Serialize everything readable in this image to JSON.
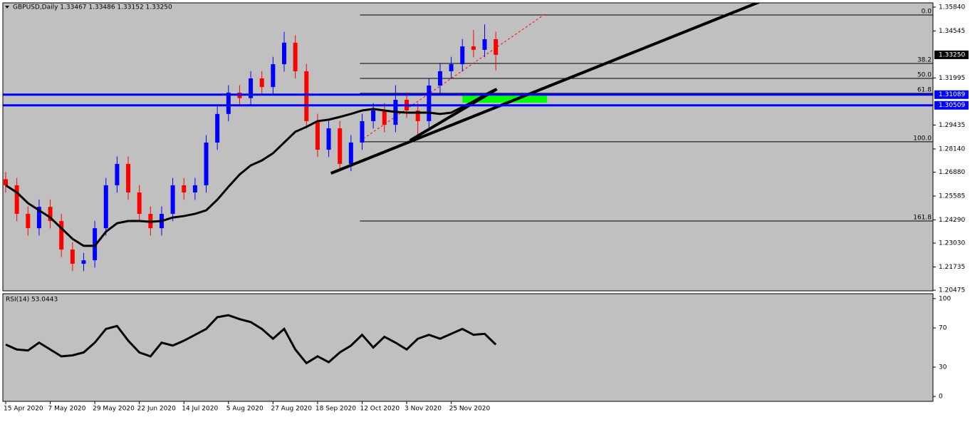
{
  "chart_data": [
    {
      "type": "candlestick",
      "title": "GBPUSD,Daily  1.33467 1.33486 1.33152 1.33250",
      "categories": [
        "15 Apr 2020",
        null,
        null,
        null,
        "7 May 2020",
        null,
        null,
        null,
        "29 May 2020",
        null,
        null,
        null,
        "22 Jun 2020",
        null,
        null,
        null,
        "14 Jul 2020",
        null,
        null,
        null,
        "5 Aug 2020",
        null,
        null,
        null,
        "27 Aug 2020",
        null,
        null,
        null,
        "18 Sep 2020",
        null,
        null,
        null,
        "12 Oct 2020",
        null,
        null,
        null,
        "3 Nov 2020",
        null,
        null,
        null,
        "25 Nov 2020",
        null,
        null,
        null,
        null
      ],
      "open": [
        1.265,
        1.2617,
        1.2462,
        1.2384,
        1.25,
        1.2423,
        1.2268,
        1.2191,
        1.221,
        1.2384,
        1.2617,
        1.2733,
        1.2578,
        1.2462,
        1.2384,
        1.2462,
        1.2617,
        1.2578,
        1.2617,
        1.2849,
        1.3004,
        1.312,
        1.309,
        1.3197,
        1.315,
        1.3274,
        1.3391,
        1.3236,
        1.2965,
        1.281,
        1.2926,
        1.2733,
        1.2849,
        1.2965,
        1.3023,
        1.2945,
        1.3081,
        1.3023,
        1.2965,
        1.3158,
        1.3236,
        1.3274,
        1.3371,
        1.3352,
        1.341
      ],
      "high": [
        1.269,
        1.2657,
        1.2502,
        1.254,
        1.254,
        1.2463,
        1.2308,
        1.225,
        1.2424,
        1.2657,
        1.2773,
        1.2773,
        1.2618,
        1.2502,
        1.2502,
        1.2657,
        1.2657,
        1.2657,
        1.2889,
        1.3044,
        1.316,
        1.316,
        1.3237,
        1.3237,
        1.3314,
        1.345,
        1.3431,
        1.3276,
        1.3005,
        1.2966,
        1.2966,
        1.2889,
        1.3005,
        1.3063,
        1.3063,
        1.316,
        1.3121,
        1.3063,
        1.3198,
        1.3276,
        1.3314,
        1.3411,
        1.346,
        1.349,
        1.345
      ],
      "low": [
        1.2577,
        1.2422,
        1.2344,
        1.2344,
        1.2383,
        1.2228,
        1.2151,
        1.2151,
        1.217,
        1.2344,
        1.2577,
        1.2538,
        1.2422,
        1.2344,
        1.2344,
        1.2422,
        1.2538,
        1.2538,
        1.2577,
        1.2809,
        1.2964,
        1.305,
        1.305,
        1.311,
        1.311,
        1.3234,
        1.3196,
        1.2925,
        1.277,
        1.277,
        1.2693,
        1.2693,
        1.2809,
        1.2925,
        1.2905,
        1.2905,
        1.2983,
        1.288,
        1.2925,
        1.3118,
        1.3196,
        1.3234,
        1.3312,
        1.3312,
        1.324
      ],
      "close": [
        1.2617,
        1.2462,
        1.2384,
        1.25,
        1.2423,
        1.2268,
        1.2191,
        1.221,
        1.2384,
        1.2617,
        1.2733,
        1.2578,
        1.2462,
        1.2384,
        1.2462,
        1.2617,
        1.2578,
        1.2617,
        1.2849,
        1.3004,
        1.312,
        1.309,
        1.3197,
        1.315,
        1.3274,
        1.3391,
        1.3236,
        1.2965,
        1.281,
        1.2926,
        1.2733,
        1.2849,
        1.2965,
        1.3023,
        1.2945,
        1.3081,
        1.3023,
        1.2965,
        1.3158,
        1.3236,
        1.3274,
        1.3371,
        1.3352,
        1.341,
        1.3325
      ],
      "up_color": "#0000ff",
      "down_color": "#ff0000",
      "moving_average": {
        "color": "#000000",
        "values": [
          1.2617,
          1.2578,
          1.252,
          1.2481,
          1.2442,
          1.2384,
          1.2326,
          1.2288,
          1.2288,
          1.2365,
          1.2411,
          1.2423,
          1.2423,
          1.2419,
          1.2423,
          1.2442,
          1.245,
          1.2462,
          1.2481,
          1.2539,
          1.2609,
          1.2675,
          1.2725,
          1.2752,
          1.2791,
          1.2849,
          1.2907,
          1.2934,
          1.2965,
          1.2973,
          1.2988,
          1.3004,
          1.3023,
          1.3031,
          1.3023,
          1.3015,
          1.3011,
          1.3011,
          1.3011,
          1.3004,
          1.3011,
          1.3042,
          1.3073,
          1.3108,
          1.3139
        ]
      },
      "trendlines": [
        {
          "x": [
            29.2,
            67.8
          ],
          "y": [
            1.2682,
            1.3615
          ],
          "color": "#000000"
        },
        {
          "x": [
            36.3,
            44.1
          ],
          "y": [
            1.286,
            1.3139
          ],
          "color": "#000000"
        }
      ],
      "dashed_line": {
        "x": [
          31.8,
          48.4
        ],
        "y": [
          1.2857,
          1.3545
        ],
        "color": "#ff0000"
      },
      "fibonacci": {
        "start": 31.8,
        "color": "#000000",
        "levels": [
          {
            "label": "0.0",
            "price": 1.3541
          },
          {
            "label": "38.2",
            "price": 1.3278
          },
          {
            "label": "50.0",
            "price": 1.3197
          },
          {
            "label": "61.8",
            "price": 1.3116
          },
          {
            "label": "100.0",
            "price": 1.2853
          },
          {
            "label": "161.8",
            "price": 1.2423
          }
        ]
      },
      "zone": {
        "x": [
          41,
          48.6
        ],
        "y": [
          1.3065,
          1.3108
        ],
        "color": "#00ff00"
      },
      "hlines": [
        {
          "price": 1.31089,
          "color": "#0000ff"
        },
        {
          "price": 1.30509,
          "color": "#0000ff"
        }
      ],
      "current_price": {
        "value": 1.3325,
        "label": "1.33250"
      },
      "ylim": [
        1.2044,
        1.3607
      ],
      "yticks": [
        {
          "value": 1.3584,
          "label": "1.35840"
        },
        1.34545,
        1.31995,
        1.29435,
        {
          "value": 1.2814,
          "label": "1.28140"
        },
        {
          "value": 1.2688,
          "label": "1.26880"
        },
        1.25585,
        {
          "value": 1.2429,
          "label": "1.24290"
        },
        {
          "value": 1.2303,
          "label": "1.23030"
        },
        1.21735,
        1.20475
      ]
    },
    {
      "type": "line",
      "title": "RSI(14) 53.0443",
      "values": [
        53,
        48,
        47,
        55,
        48,
        41,
        42,
        45,
        55,
        69,
        72,
        57,
        45,
        41,
        55,
        52,
        57,
        63,
        69,
        81,
        83,
        79,
        76,
        69,
        59,
        69,
        48,
        34,
        41,
        35,
        45,
        52,
        63,
        50,
        61,
        55,
        48,
        59,
        63,
        59,
        64,
        69,
        63,
        64,
        53
      ],
      "color": "#000000",
      "ylim": [
        -5,
        105
      ],
      "yticks": [
        100,
        70,
        30,
        0
      ]
    }
  ]
}
